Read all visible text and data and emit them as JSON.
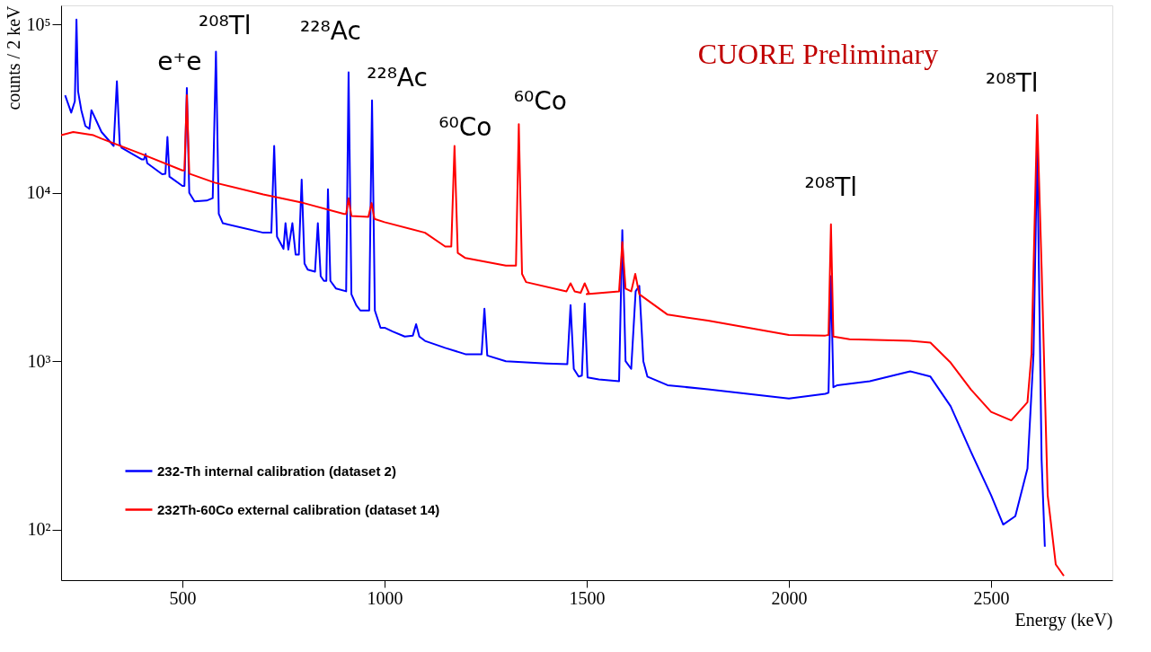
{
  "chart_data": {
    "type": "line",
    "xlabel": "Energy (keV)",
    "ylabel": "counts / 2 keV",
    "xlim": [
      200,
      2800
    ],
    "xticks": [
      500,
      1000,
      1500,
      2000,
      2500
    ],
    "ylim": [
      50,
      130000
    ],
    "yticks": [
      {
        "value": 100,
        "label": "10²"
      },
      {
        "value": 1000,
        "label": "10³"
      },
      {
        "value": 10000,
        "label": "10⁴"
      },
      {
        "value": 100000,
        "label": "10⁵"
      }
    ],
    "log": "y",
    "grid": false,
    "legend": "bottom left",
    "series": [
      {
        "name": "232-Th internal calibration (dataset 2)",
        "color": "#0000ff",
        "x": [
          210,
          225,
          234,
          238,
          242,
          250,
          260,
          270,
          275,
          300,
          330,
          338,
          345,
          350,
          400,
          405,
          409,
          413,
          450,
          458,
          463,
          468,
          500,
          505,
          511,
          517,
          530,
          560,
          575,
          583,
          590,
          600,
          700,
          720,
          727,
          734,
          750,
          755,
          762,
          772,
          780,
          788,
          795,
          802,
          810,
          828,
          835,
          842,
          850,
          856,
          860,
          866,
          880,
          905,
          911,
          918,
          930,
          940,
          962,
          969,
          976,
          990,
          1000,
          1020,
          1050,
          1070,
          1078,
          1086,
          1100,
          1150,
          1200,
          1240,
          1247,
          1254,
          1300,
          1400,
          1452,
          1460,
          1468,
          1480,
          1488,
          1495,
          1502,
          1530,
          1580,
          1588,
          1596,
          1610,
          1621,
          1630,
          1640,
          1650,
          1700,
          1800,
          2000,
          2090,
          2098,
          2104,
          2110,
          2120,
          2200,
          2300,
          2350,
          2400,
          2450,
          2500,
          2530,
          2560,
          2590,
          2605,
          2614,
          2625,
          2633
        ],
        "values": [
          38000,
          30000,
          35000,
          107000,
          40000,
          31000,
          25000,
          24000,
          31000,
          23000,
          19000,
          46000,
          19500,
          18500,
          15800,
          15800,
          17000,
          15000,
          12900,
          13000,
          21500,
          12500,
          11000,
          11000,
          42000,
          10000,
          8900,
          9000,
          9300,
          69000,
          7500,
          6600,
          5800,
          5800,
          19000,
          5500,
          4650,
          6600,
          4600,
          6600,
          4300,
          4300,
          12000,
          3800,
          3500,
          3400,
          6600,
          3200,
          3000,
          3000,
          10500,
          3000,
          2700,
          2600,
          52000,
          2500,
          2150,
          2000,
          2000,
          35500,
          2000,
          1580,
          1580,
          1500,
          1400,
          1420,
          1660,
          1400,
          1320,
          1200,
          1100,
          1100,
          2050,
          1080,
          1000,
          970,
          960,
          2150,
          900,
          810,
          820,
          2200,
          800,
          780,
          760,
          6000,
          1000,
          900,
          2600,
          2800,
          1000,
          810,
          720,
          680,
          600,
          640,
          650,
          3200,
          700,
          720,
          760,
          870,
          810,
          540,
          290,
          160,
          107,
          120,
          230,
          1100,
          18700,
          260,
          79
        ]
      },
      {
        "name": "232Th-60Co external calibration (dataset 14)",
        "color": "#ff0000",
        "x": [
          200,
          230,
          280,
          300,
          400,
          500,
          505,
          511,
          517,
          580,
          700,
          800,
          900,
          905,
          911,
          918,
          960,
          968,
          975,
          1000,
          1100,
          1150,
          1165,
          1173,
          1181,
          1200,
          1300,
          1325,
          1332,
          1340,
          1350,
          1450,
          1460,
          1470,
          1485,
          1495,
          1505,
          1500,
          1580,
          1588,
          1596,
          1610,
          1620,
          1630,
          1700,
          1800,
          2000,
          2090,
          2098,
          2104,
          2110,
          2150,
          2300,
          2350,
          2400,
          2450,
          2500,
          2550,
          2590,
          2600,
          2614,
          2625,
          2640,
          2660,
          2680
        ],
        "values": [
          22000,
          23000,
          22000,
          21000,
          17000,
          13600,
          13600,
          38000,
          13000,
          11500,
          9800,
          8700,
          7500,
          7500,
          9300,
          7300,
          7200,
          8700,
          7000,
          6700,
          5800,
          4800,
          4800,
          19000,
          4400,
          4100,
          3700,
          3700,
          25600,
          3300,
          2950,
          2600,
          2900,
          2600,
          2550,
          2900,
          2550,
          2500,
          2600,
          5100,
          2700,
          2600,
          3300,
          2500,
          1890,
          1740,
          1430,
          1420,
          1430,
          6500,
          1400,
          1350,
          1320,
          1290,
          980,
          680,
          500,
          445,
          570,
          1100,
          29000,
          3600,
          160,
          62,
          53
        ]
      }
    ],
    "annotations": [
      {
        "text": "e⁺e",
        "x": 511,
        "y": 42000
      },
      {
        "text": "²⁰⁸Tl",
        "x": 583,
        "y": 69000
      },
      {
        "text": "²²⁸Ac",
        "x": 911,
        "y": 52000
      },
      {
        "text": "²²⁸Ac",
        "x": 969,
        "y": 35500
      },
      {
        "text": "⁶⁰Co",
        "x": 1173,
        "y": 19000
      },
      {
        "text": "⁶⁰Co",
        "x": 1332,
        "y": 25600
      },
      {
        "text": "²⁰⁸Tl",
        "x": 2104,
        "y": 6500
      },
      {
        "text": "²⁰⁸Tl",
        "x": 2614,
        "y": 29000
      },
      "CUORE Preliminary"
    ]
  }
}
